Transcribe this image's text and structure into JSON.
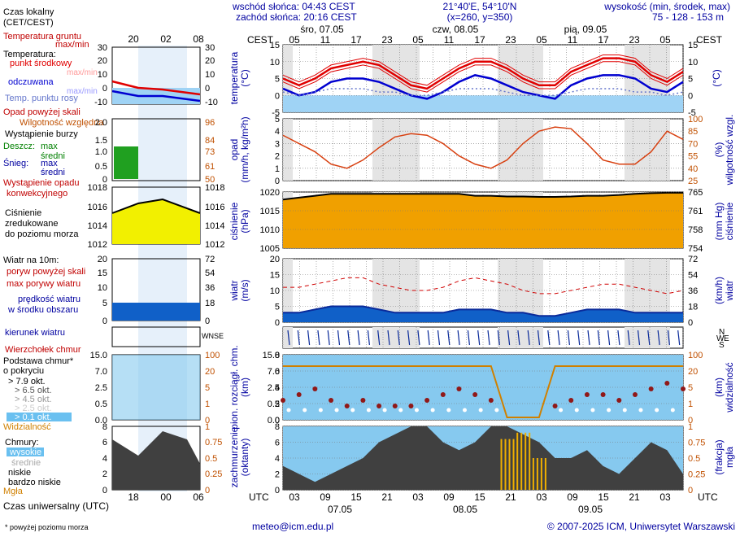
{
  "header": {
    "sunrise": "wschód słońca: 04:43 CEST",
    "sunset": "zachód słońca: 20:16 CEST",
    "coords": "21°40'E, 54°10'N",
    "grid": "(x=260,  y=350)",
    "height_title": "wysokość (min, środek, max)",
    "heights": "75 - 128 - 153 m"
  },
  "timeline": {
    "cest_label": "CEST",
    "utc_label": "UTC",
    "cest_ticks": [
      "05",
      "11",
      "17",
      "23",
      "05",
      "11",
      "17",
      "23",
      "05",
      "11",
      "17",
      "23",
      "05"
    ],
    "utc_ticks": [
      "03",
      "09",
      "15",
      "21",
      "03",
      "09",
      "15",
      "21",
      "03",
      "09",
      "15",
      "21",
      "03"
    ],
    "days_top": [
      "śro, 07.05",
      "czw, 08.05",
      "pią, 09.05"
    ],
    "days_bottom": [
      "07.05",
      "08.05",
      "09.05"
    ]
  },
  "legend": {
    "local_time": "Czas lokalny",
    "local_time2": "(CET/CEST)",
    "lt_ticks": [
      "20",
      "02",
      "08"
    ],
    "ut_ticks": [
      "18",
      "00",
      "06"
    ],
    "soil_temp": "Temperatura gruntu",
    "maxmin": "max/min",
    "temperature": "Temperatura:",
    "center_point": "punkt środkowy",
    "maxmin2": "max/min",
    "felt": "odczuwana",
    "maxmin3": "max/min",
    "dew": "Temp. punktu rosy",
    "precip_above": "Opad powyżej skali",
    "humidity": "Wilgotność względna",
    "storm": "Wystąpienie burzy",
    "rain": "Deszcz:",
    "rain_max": "max",
    "rain_mean": "średni",
    "snow": "Śnieg:",
    "snow_max": "max",
    "snow_mean": "średni",
    "convective": "Wystąpienie opadu",
    "convective2": "konwekcyjnego",
    "pressure1": "Ciśnienie",
    "pressure2": "zredukowane",
    "pressure3": "do poziomu morza",
    "wind": "Wiatr na 10m:",
    "gust_above": "poryw powyżej skali",
    "gust_max": "max porywy wiatru",
    "wind_speed": "prędkość wiatru",
    "wind_speed2": "w środku obszaru",
    "wind_dir": "kierunek wiatru",
    "cloud_top": "Wierzchołek chmur",
    "cloud_base1": "Podstawa chmur*",
    "cloud_base2": "o pokryciu",
    "okt79": "> 7.9 okt.",
    "okt65": "> 6.5 okt.",
    "okt45": "> 4.5 okt.",
    "okt25": "> 2.5 okt.",
    "okt01": "> 0.1 okt.",
    "visibility": "Widzialność",
    "clouds": "Chmury:",
    "high": "wysokie",
    "mid": "średnie",
    "low": "niskie",
    "vlow": "bardzo niskie",
    "fog": "Mgła",
    "utc_time": "Czas uniwersalny (UTC)",
    "footnote": "* powyżej poziomu morza",
    "compass": "WNSE",
    "n": "N",
    "w": "W",
    "e": "E",
    "s": "S"
  },
  "axes": {
    "temp_title": "temperatura",
    "temp_unit": "(°C)",
    "precip_title": "opad",
    "precip_unit": "(mm/h, kg/m²h)",
    "hum_title": "wilgotność wzgl.",
    "hum_unit": "(%)",
    "press_title": "ciśnienie",
    "press_unit": "(hPa)",
    "press_unit_r": "(mm Hg)",
    "wind_title": "wiatr",
    "wind_unit": "(m/s)",
    "wind_unit_r": "(km/h)",
    "cloud_title": "pion. rozciągł. chm.",
    "cloud_unit": "(km)",
    "vis_title": "widzialność",
    "vis_unit": "(km)",
    "cover_title": "zachmurzenie",
    "cover_unit": "(oktanty)",
    "fog_title": "mgła",
    "fog_unit": "(frakcja)"
  },
  "footer": {
    "email": "meteo@icm.edu.pl",
    "copyright": "© 2007-2025 ICM, Uniwersytet Warszawski"
  },
  "colors": {
    "bg_light": "#e6f0fa",
    "shade": "#e4e4e4",
    "cloud_panel": "#7fc4f0",
    "temp_red": "#e00000",
    "temp_blue": "#0000d0",
    "dew": "#6677cc",
    "hum": "#d84010",
    "press_fill": "#f0a000",
    "press_line": "#000000",
    "wind_dark": "#0a2a9a",
    "wind_green": "#30c030",
    "gust": "#d00000",
    "orange": "#d08000",
    "cloud_dark": "#404040",
    "fog": "#f0b000"
  },
  "chart_data": [
    {
      "type": "line",
      "title": "temperatura",
      "ylabel": "(°C)",
      "ylim": [
        -5,
        15
      ],
      "yticks": [
        -5,
        0,
        5,
        10,
        15
      ],
      "yticks_right": [
        -5,
        0,
        5,
        10,
        15
      ],
      "series": [
        {
          "name": "temperatura max",
          "values": [
            6,
            4,
            6,
            9,
            10,
            11,
            10,
            7,
            4,
            3,
            6,
            9,
            11,
            11,
            9,
            6,
            4,
            4,
            8,
            10,
            12,
            12,
            11,
            7,
            5,
            8
          ]
        },
        {
          "name": "temperatura punkt środkowy",
          "values": [
            5,
            3,
            5,
            8,
            9,
            10,
            9,
            6,
            3,
            2,
            5,
            8,
            10,
            10,
            8,
            5,
            3,
            3,
            7,
            9,
            11,
            11,
            10,
            6,
            4,
            7
          ]
        },
        {
          "name": "temperatura min",
          "values": [
            4,
            2,
            4,
            7,
            8,
            9,
            8,
            5,
            2,
            1,
            4,
            7,
            9,
            9,
            7,
            4,
            2,
            2,
            6,
            8,
            10,
            10,
            9,
            5,
            3,
            6
          ]
        },
        {
          "name": "odczuwana",
          "values": [
            2,
            0,
            1,
            4,
            5,
            5,
            4,
            2,
            0,
            -1,
            1,
            4,
            6,
            5,
            3,
            1,
            0,
            -1,
            3,
            5,
            6,
            6,
            5,
            2,
            1,
            4
          ]
        },
        {
          "name": "temp. punktu rosy",
          "values": [
            1,
            0,
            1,
            2,
            2,
            2,
            1,
            1,
            0,
            0,
            1,
            2,
            2,
            2,
            1,
            0,
            0,
            0,
            1,
            2,
            2,
            2,
            1,
            1,
            0,
            1
          ]
        }
      ]
    },
    {
      "type": "line",
      "title": "opad / wilgotność wzgl.",
      "ylabel": "(mm/h, kg/m²h)",
      "ylim": [
        0,
        5
      ],
      "yticks": [
        0,
        1,
        2,
        3,
        4,
        5
      ],
      "yticks_right": [
        25,
        40,
        55,
        70,
        85,
        100
      ],
      "series": [
        {
          "name": "wilgotność względna (%)",
          "values": [
            80,
            70,
            60,
            45,
            40,
            50,
            65,
            78,
            82,
            80,
            70,
            55,
            45,
            40,
            50,
            70,
            85,
            90,
            88,
            70,
            50,
            45,
            45,
            60,
            85,
            75
          ]
        }
      ]
    },
    {
      "type": "area",
      "title": "ciśnienie",
      "ylabel": "(hPa)",
      "ylim": [
        1005,
        1020
      ],
      "yticks": [
        1005,
        1010,
        1015,
        1020
      ],
      "yticks_right": [
        754,
        758,
        761,
        765
      ],
      "series": [
        {
          "name": "ciśnienie",
          "values": [
            1018,
            1018.5,
            1019,
            1019.5,
            1019.5,
            1019.5,
            1019.5,
            1019.5,
            1019.5,
            1019.5,
            1019.5,
            1019.5,
            1019,
            1019,
            1018.8,
            1018.8,
            1018.7,
            1018.7,
            1018.8,
            1019,
            1019,
            1019.2,
            1019.5,
            1019.7,
            1019.8,
            1019.8
          ]
        }
      ]
    },
    {
      "type": "area",
      "title": "wiatr",
      "ylabel": "(m/s)",
      "ylim": [
        0,
        20
      ],
      "yticks": [
        0,
        5,
        10,
        15,
        20
      ],
      "yticks_right": [
        0,
        18,
        36,
        54,
        72
      ],
      "series": [
        {
          "name": "max porywy wiatru",
          "values": [
            11,
            11,
            12,
            13,
            14,
            14,
            12,
            11,
            10,
            10,
            11,
            13,
            14,
            13,
            12,
            10,
            9,
            9,
            10,
            11,
            12,
            12,
            11,
            10,
            9,
            10
          ]
        },
        {
          "name": "prędkość wiatru",
          "values": [
            3,
            3,
            4,
            5,
            5,
            5,
            4,
            3,
            3,
            3,
            3,
            4,
            4,
            4,
            3,
            3,
            2,
            2,
            3,
            4,
            4,
            4,
            3,
            3,
            3,
            3
          ]
        }
      ]
    },
    {
      "type": "line",
      "title": "pion. rozciągł. chm. / widzialność",
      "ylabel": "(km)",
      "ylim": [
        0,
        15
      ],
      "yticks": [
        0,
        0.5,
        2.5,
        7.0,
        15.0
      ],
      "yticks_right": [
        0,
        1,
        5,
        20,
        100
      ],
      "series": [
        {
          "name": "widzialność (km)",
          "values": [
            20,
            30,
            40,
            40,
            40,
            40,
            35,
            35,
            40,
            40,
            20,
            30,
            40,
            40,
            0.3,
            0.2,
            0.2,
            30,
            35,
            40,
            40,
            40,
            20,
            30,
            40,
            40
          ]
        },
        {
          "name": "wierzchołek chmur (km)",
          "values": [
            2,
            3,
            4,
            2,
            1,
            2,
            1,
            1,
            1,
            2,
            3,
            4,
            3,
            2,
            0,
            0,
            0,
            1,
            2,
            3,
            3,
            2,
            3,
            4,
            5,
            4
          ]
        }
      ]
    },
    {
      "type": "area",
      "title": "zachmurzenie / mgła",
      "ylabel": "(oktanty)",
      "ylim": [
        0,
        8
      ],
      "yticks": [
        0,
        2,
        4,
        6,
        8
      ],
      "yticks_right": [
        0,
        0.25,
        0.5,
        0.75,
        1
      ],
      "series": [
        {
          "name": "chmury niskie",
          "values": [
            3,
            2,
            1,
            2,
            3,
            4,
            6,
            7,
            8,
            8,
            6,
            5,
            6,
            8,
            8,
            7,
            6,
            4,
            4,
            5,
            3,
            2,
            4,
            6,
            5,
            2
          ]
        },
        {
          "name": "mgła",
          "values": [
            0,
            0,
            0,
            0,
            0,
            0,
            0,
            0,
            0,
            0,
            0,
            0,
            0,
            0,
            0.8,
            0.9,
            0.5,
            0,
            0,
            0,
            0,
            0,
            0,
            0,
            0,
            0
          ]
        }
      ]
    }
  ]
}
